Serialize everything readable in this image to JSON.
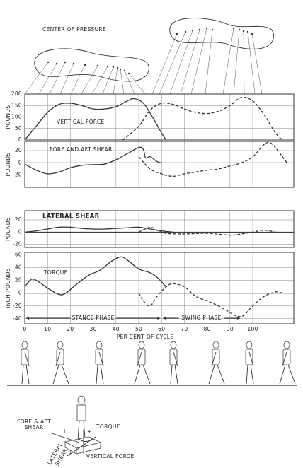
{
  "chart_data": [
    {
      "type": "line",
      "title": "VERTICAL FORCE",
      "ylabel": "POUNDS",
      "xlim": [
        0,
        118
      ],
      "xticks": [
        0,
        10,
        20,
        30,
        40,
        50,
        60,
        70,
        80,
        90,
        100
      ],
      "show_xtick_labels": false,
      "ylim": [
        0,
        200
      ],
      "yticks": [
        0,
        50,
        100,
        150,
        200
      ],
      "grid": true,
      "series": [
        {
          "color": "#333333",
          "dash": false,
          "x": [
            0,
            5,
            10,
            15,
            20,
            25,
            30,
            35,
            40,
            45,
            48,
            52,
            56,
            60,
            62
          ],
          "values": [
            0,
            60,
            120,
            155,
            160,
            150,
            135,
            135,
            145,
            170,
            180,
            160,
            100,
            30,
            0
          ]
        },
        {
          "color": "#333333",
          "dash": true,
          "x": [
            43,
            50,
            55,
            60,
            65,
            70,
            75,
            80,
            85,
            90,
            95,
            100,
            105,
            110,
            113
          ],
          "values": [
            0,
            60,
            130,
            160,
            155,
            135,
            120,
            115,
            125,
            150,
            185,
            170,
            110,
            30,
            0
          ]
        }
      ]
    },
    {
      "type": "line",
      "title": "FORE AND AFT SHEAR",
      "ylabel": "POUNDS",
      "xlim": [
        0,
        118
      ],
      "xticks": [
        0,
        10,
        20,
        30,
        40,
        50,
        60,
        70,
        80,
        90,
        100
      ],
      "show_xtick_labels": false,
      "ylim": [
        -40,
        35
      ],
      "yticks": [
        20,
        0,
        -20
      ],
      "grid": true,
      "series": [
        {
          "color": "#333333",
          "dash": false,
          "x": [
            0,
            5,
            10,
            15,
            20,
            25,
            30,
            35,
            40,
            45,
            50,
            52,
            53,
            55,
            58,
            60
          ],
          "values": [
            -2,
            -12,
            -18,
            -15,
            -8,
            -4,
            -3,
            -2,
            5,
            15,
            25,
            22,
            8,
            10,
            2,
            0
          ]
        },
        {
          "color": "#333333",
          "dash": true,
          "x": [
            50,
            55,
            60,
            65,
            70,
            75,
            80,
            85,
            90,
            95,
            100,
            105,
            108,
            112,
            115
          ],
          "values": [
            10,
            -10,
            -18,
            -22,
            -18,
            -15,
            -12,
            -10,
            -5,
            0,
            10,
            30,
            32,
            15,
            0
          ]
        }
      ]
    },
    {
      "type": "line",
      "title": "LATERAL SHEAR",
      "ylabel": "POUNDS",
      "xlim": [
        0,
        118
      ],
      "xticks": [
        0,
        10,
        20,
        30,
        40,
        50,
        60,
        70,
        80,
        90,
        100
      ],
      "show_xtick_labels": false,
      "ylim": [
        -25,
        35
      ],
      "yticks": [
        20,
        0,
        -20
      ],
      "grid": true,
      "series": [
        {
          "color": "#333333",
          "dash": false,
          "x": [
            0,
            5,
            10,
            15,
            20,
            25,
            30,
            35,
            40,
            45,
            50,
            55,
            60,
            65
          ],
          "values": [
            0,
            2,
            5,
            8,
            8,
            6,
            5,
            5,
            6,
            7,
            8,
            5,
            2,
            0
          ]
        },
        {
          "color": "#333333",
          "dash": true,
          "x": [
            50,
            55,
            58,
            62,
            70,
            80,
            90,
            95,
            100,
            105,
            110
          ],
          "values": [
            0,
            8,
            3,
            -2,
            -3,
            -2,
            -5,
            -3,
            0,
            3,
            0
          ]
        }
      ]
    },
    {
      "type": "line",
      "title": "TORQUE",
      "ylabel": "INCH-POUNDS",
      "xlim": [
        0,
        118
      ],
      "xticks": [
        0,
        10,
        20,
        30,
        40,
        50,
        60,
        70,
        80,
        90,
        100
      ],
      "show_xtick_labels": true,
      "xlabel": "PER CENT OF CYCLE",
      "ylim": [
        -48,
        64
      ],
      "yticks": [
        60,
        40,
        20,
        0,
        -20,
        -40
      ],
      "grid": true,
      "annotations": [
        "STANCE PHASE",
        "SWING PHASE"
      ],
      "series": [
        {
          "color": "#333333",
          "dash": false,
          "x": [
            0,
            3,
            6,
            10,
            15,
            18,
            22,
            28,
            33,
            38,
            42,
            45,
            50,
            55,
            58,
            62
          ],
          "values": [
            10,
            22,
            18,
            8,
            -2,
            0,
            12,
            28,
            36,
            50,
            57,
            52,
            38,
            32,
            25,
            10
          ]
        },
        {
          "color": "#333333",
          "dash": true,
          "x": [
            50,
            52,
            55,
            58,
            62,
            65,
            70,
            75,
            80,
            85,
            90,
            93,
            96,
            100,
            105,
            110,
            113
          ],
          "values": [
            0,
            -12,
            -20,
            -5,
            10,
            15,
            10,
            -5,
            -12,
            -20,
            -30,
            -36,
            -35,
            -20,
            -5,
            2,
            0
          ]
        }
      ]
    }
  ],
  "center_of_pressure": {
    "title": "CENTER OF PRESSURE"
  },
  "force_diagram": {
    "fore_aft": [
      "FORE & AFT",
      "SHEAR"
    ],
    "torque": "TORQUE",
    "lateral": [
      "LATERAL",
      "SHEAR"
    ],
    "vertical": "VERTICAL FORCE",
    "plus": [
      "+",
      "+",
      "+"
    ]
  }
}
